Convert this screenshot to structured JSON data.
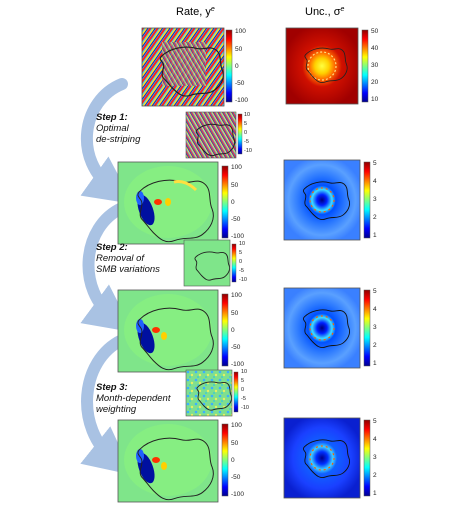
{
  "columns": {
    "rate_title": "Rate, y",
    "rate_sup": "e",
    "unc_title": "Unc., σ",
    "unc_sup": "e"
  },
  "steps": [
    {
      "heading": "Step 1:",
      "line1": "Optimal",
      "line2": "de-striping"
    },
    {
      "heading": "Step 2:",
      "line1": "Removal of",
      "line2": "SMB variations"
    },
    {
      "heading": "Step 3:",
      "line1": "Month-dependent",
      "line2": "weighting"
    }
  ],
  "colorbars": {
    "rate_ticks": [
      "100",
      "50",
      "0",
      "-50",
      "-100"
    ],
    "unc_ticks_top": [
      "50",
      "40",
      "30",
      "20",
      "10"
    ],
    "unc_ticks": [
      "5",
      "4",
      "3",
      "2",
      "1"
    ],
    "small_ticks": [
      "10",
      "5",
      "0",
      "-5",
      "-10"
    ],
    "step1_ticks": [
      "10",
      "5",
      "0",
      "-5",
      "-10"
    ]
  },
  "colors": {
    "arrow": "#a9c2e3",
    "jet_low": "#00008f",
    "jet_mid": "#7fff7f",
    "jet_high": "#8f0000"
  }
}
